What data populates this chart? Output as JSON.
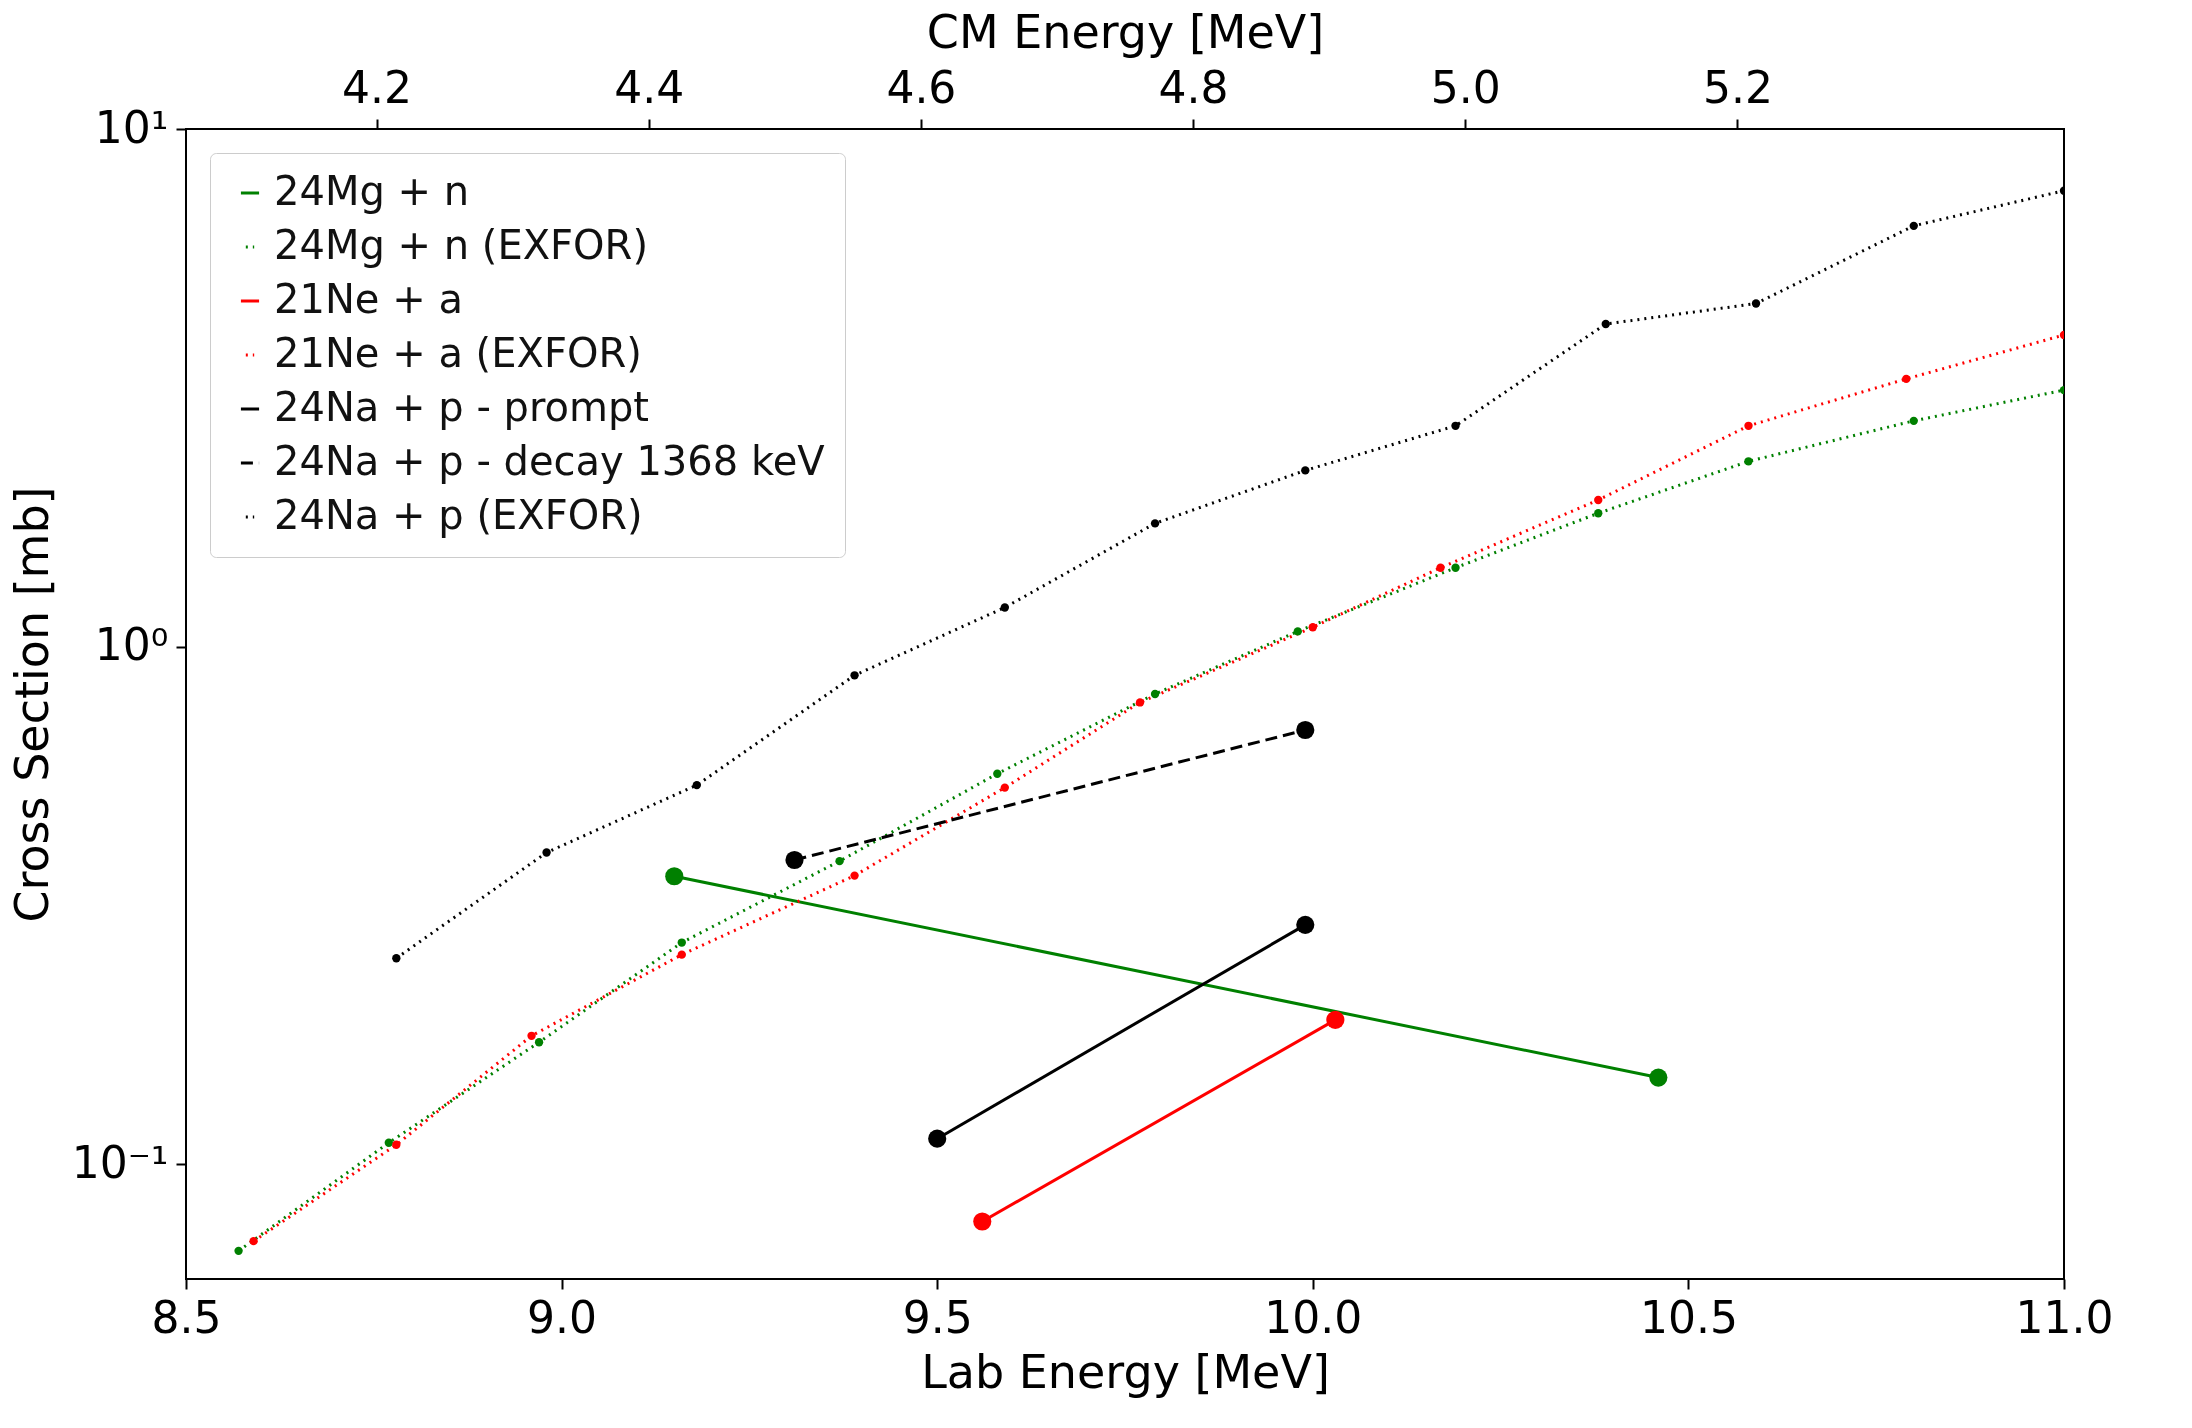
{
  "chart_data": {
    "type": "line",
    "xlabel": "Lab Energy [MeV]",
    "x2label": "CM Energy [MeV]",
    "ylabel": "Cross Section [mb]",
    "xlim": [
      8.5,
      11.0
    ],
    "xticks": [
      {
        "value": 8.5,
        "label": "8.5"
      },
      {
        "value": 9.0,
        "label": "9.0"
      },
      {
        "value": 9.5,
        "label": "9.5"
      },
      {
        "value": 10.0,
        "label": "10.0"
      },
      {
        "value": 10.5,
        "label": "10.5"
      },
      {
        "value": 11.0,
        "label": "11.0"
      }
    ],
    "x2lim": [
      4.06,
      5.44
    ],
    "x2ticks": [
      4.2,
      4.4,
      4.6,
      4.8,
      {
        "value": 5.0,
        "label": "5.0"
      },
      5.2
    ],
    "ylim": [
      0.06,
      10
    ],
    "yticks": [
      {
        "value": 0.1,
        "label": "10⁻¹"
      },
      {
        "value": 1,
        "label": "10⁰"
      },
      {
        "value": 10,
        "label": "10¹"
      }
    ],
    "log": "y",
    "grid": false,
    "legend": "top left",
    "marker": "circle",
    "series": [
      {
        "name": "24Mg + n",
        "color": "#008000",
        "line_style": "solid",
        "x": [
          9.15,
          10.46
        ],
        "values": [
          0.36,
          0.147
        ]
      },
      {
        "name": "24Mg + n (EXFOR)",
        "color": "#008000",
        "line_style": "dotted",
        "x": [
          8.57,
          8.77,
          8.97,
          9.16,
          9.37,
          9.58,
          9.79,
          9.98,
          10.19,
          10.38,
          10.58,
          10.8,
          11.0
        ],
        "values": [
          0.068,
          0.11,
          0.172,
          0.268,
          0.385,
          0.568,
          0.81,
          1.07,
          1.42,
          1.81,
          2.28,
          2.73,
          3.13
        ]
      },
      {
        "name": "21Ne + a",
        "color": "#ff0000",
        "line_style": "solid",
        "x": [
          9.56,
          10.03
        ],
        "values": [
          0.0775,
          0.19
        ]
      },
      {
        "name": "21Ne + a (EXFOR)",
        "color": "#ff0000",
        "line_style": "dotted",
        "x": [
          8.59,
          8.78,
          8.96,
          9.16,
          9.39,
          9.59,
          9.77,
          10.0,
          10.17,
          10.38,
          10.58,
          10.79,
          11.0
        ],
        "values": [
          0.071,
          0.109,
          0.177,
          0.254,
          0.361,
          0.534,
          0.78,
          1.09,
          1.42,
          1.92,
          2.67,
          3.29,
          4.0
        ]
      },
      {
        "name": "24Na + p - prompt",
        "color": "#000000",
        "line_style": "solid",
        "x": [
          9.5,
          9.99
        ],
        "values": [
          0.112,
          0.29
        ]
      },
      {
        "name": "24Na + p - decay 1368 keV",
        "color": "#000000",
        "line_style": "dashed",
        "x": [
          9.31,
          9.99
        ],
        "values": [
          0.387,
          0.69
        ]
      },
      {
        "name": "24Na + p (EXFOR)",
        "color": "#000000",
        "line_style": "dotted",
        "x": [
          8.78,
          8.98,
          9.18,
          9.39,
          9.59,
          9.79,
          9.99,
          10.19,
          10.39,
          10.59,
          10.8,
          11.0
        ],
        "values": [
          0.25,
          0.4,
          0.54,
          0.88,
          1.19,
          1.73,
          2.19,
          2.67,
          4.2,
          4.6,
          6.5,
          7.6
        ]
      }
    ]
  }
}
